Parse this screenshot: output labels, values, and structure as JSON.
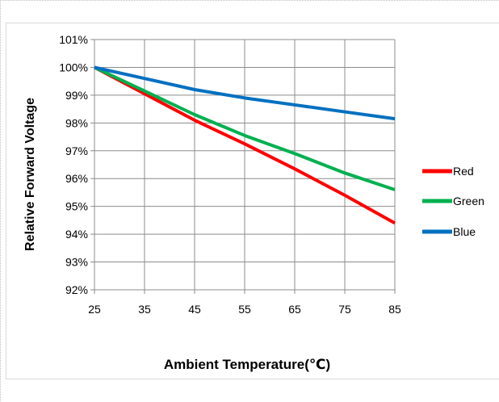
{
  "chart_data": {
    "type": "line",
    "xlabel": "Ambient Temperature(℃)",
    "ylabel": "Relative Forward Voltage",
    "x": [
      25,
      35,
      45,
      55,
      65,
      75,
      85
    ],
    "xticks": [
      "25",
      "35",
      "45",
      "55",
      "65",
      "75",
      "85"
    ],
    "yticks": [
      "92%",
      "93%",
      "94%",
      "95%",
      "96%",
      "97%",
      "98%",
      "99%",
      "100%",
      "101%"
    ],
    "xlim": [
      25,
      85
    ],
    "ylim": [
      92,
      101
    ],
    "grid": true,
    "legend_position": "right",
    "series": [
      {
        "name": "Red",
        "color": "#ff0000",
        "values": [
          100.0,
          99.05,
          98.1,
          97.25,
          96.35,
          95.4,
          94.4
        ]
      },
      {
        "name": "Green",
        "color": "#00b050",
        "values": [
          100.0,
          99.15,
          98.3,
          97.55,
          96.9,
          96.2,
          95.6
        ]
      },
      {
        "name": "Blue",
        "color": "#0070c0",
        "values": [
          100.0,
          99.6,
          99.2,
          98.9,
          98.65,
          98.4,
          98.15
        ]
      }
    ]
  }
}
